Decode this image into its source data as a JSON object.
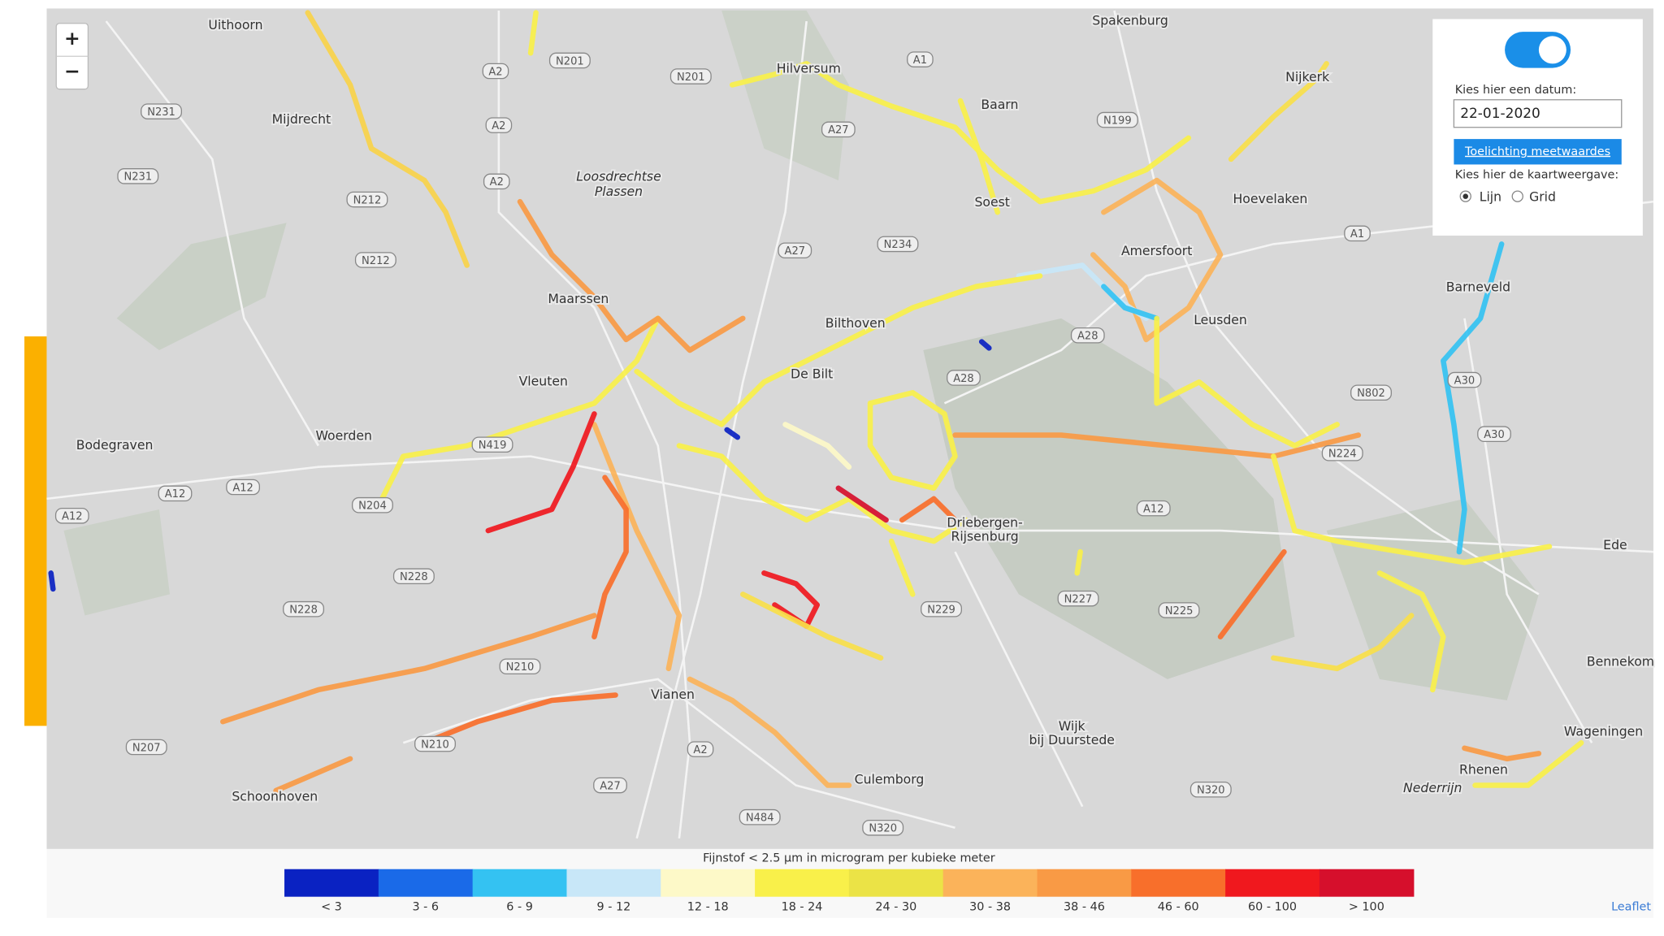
{
  "map": {
    "zoom_in": "+",
    "zoom_out": "−",
    "places": [
      "Uithoorn",
      "Mijdrecht",
      "Loosdrechtse",
      "Plassen",
      "Maarssen",
      "Vleuten",
      "Woerden",
      "Bodegraven",
      "Bilthoven",
      "De Bilt",
      "Soest",
      "Baarn",
      "Hilversum",
      "Amersfoort",
      "Leusden",
      "Hoevelaken",
      "Nijkerk",
      "Spakenburg",
      "Barneveld",
      "Ede",
      "Bennekom",
      "Wageningen",
      "Rhenen",
      "Driebergen-",
      "Rijsenburg",
      "Wijk",
      "bij Duurstede",
      "Culemborg",
      "Schoonhoven",
      "Vianen",
      "Nederrijn"
    ],
    "roads": [
      "A2",
      "A2",
      "A2",
      "A27",
      "A27",
      "A28",
      "A28",
      "A1",
      "A1",
      "A30",
      "A30",
      "A12",
      "A12",
      "A12",
      "A12",
      "N201",
      "N201",
      "N212",
      "N212",
      "N231",
      "N231",
      "N228",
      "N228",
      "N210",
      "N210",
      "N229",
      "N227",
      "N225",
      "N224",
      "N802",
      "N320",
      "N320",
      "N484",
      "N199",
      "N234",
      "N419",
      "N204",
      "N207",
      "A27",
      "A2"
    ],
    "attribution": "Leaflet"
  },
  "panel": {
    "date_label": "Kies hier een datum:",
    "date_value": "22-01-2020",
    "button": "Toelichting meetwaardes",
    "view_label": "Kies hier de kaartweergave:",
    "options": [
      "Lijn",
      "Grid"
    ]
  },
  "legend": {
    "title": "Fijnstof < 2.5 µm in microgram per kubieke meter",
    "bins": [
      {
        "label": "< 3",
        "color": "#0a22c2"
      },
      {
        "label": "3 - 6",
        "color": "#1a6ae8"
      },
      {
        "label": "6 - 9",
        "color": "#34c2f2"
      },
      {
        "label": "9 - 12",
        "color": "#c8e7f8"
      },
      {
        "label": "12 - 18",
        "color": "#fdf9c8"
      },
      {
        "label": "18 - 24",
        "color": "#f9f04a"
      },
      {
        "label": "24 - 30",
        "color": "#ebe346"
      },
      {
        "label": "30 - 38",
        "color": "#fbb35a"
      },
      {
        "label": "38 - 46",
        "color": "#f99a45"
      },
      {
        "label": "46 - 60",
        "color": "#f86f2b"
      },
      {
        "label": "60 - 100",
        "color": "#f0181e"
      },
      {
        "label": "> 100",
        "color": "#d60f2c"
      }
    ]
  }
}
